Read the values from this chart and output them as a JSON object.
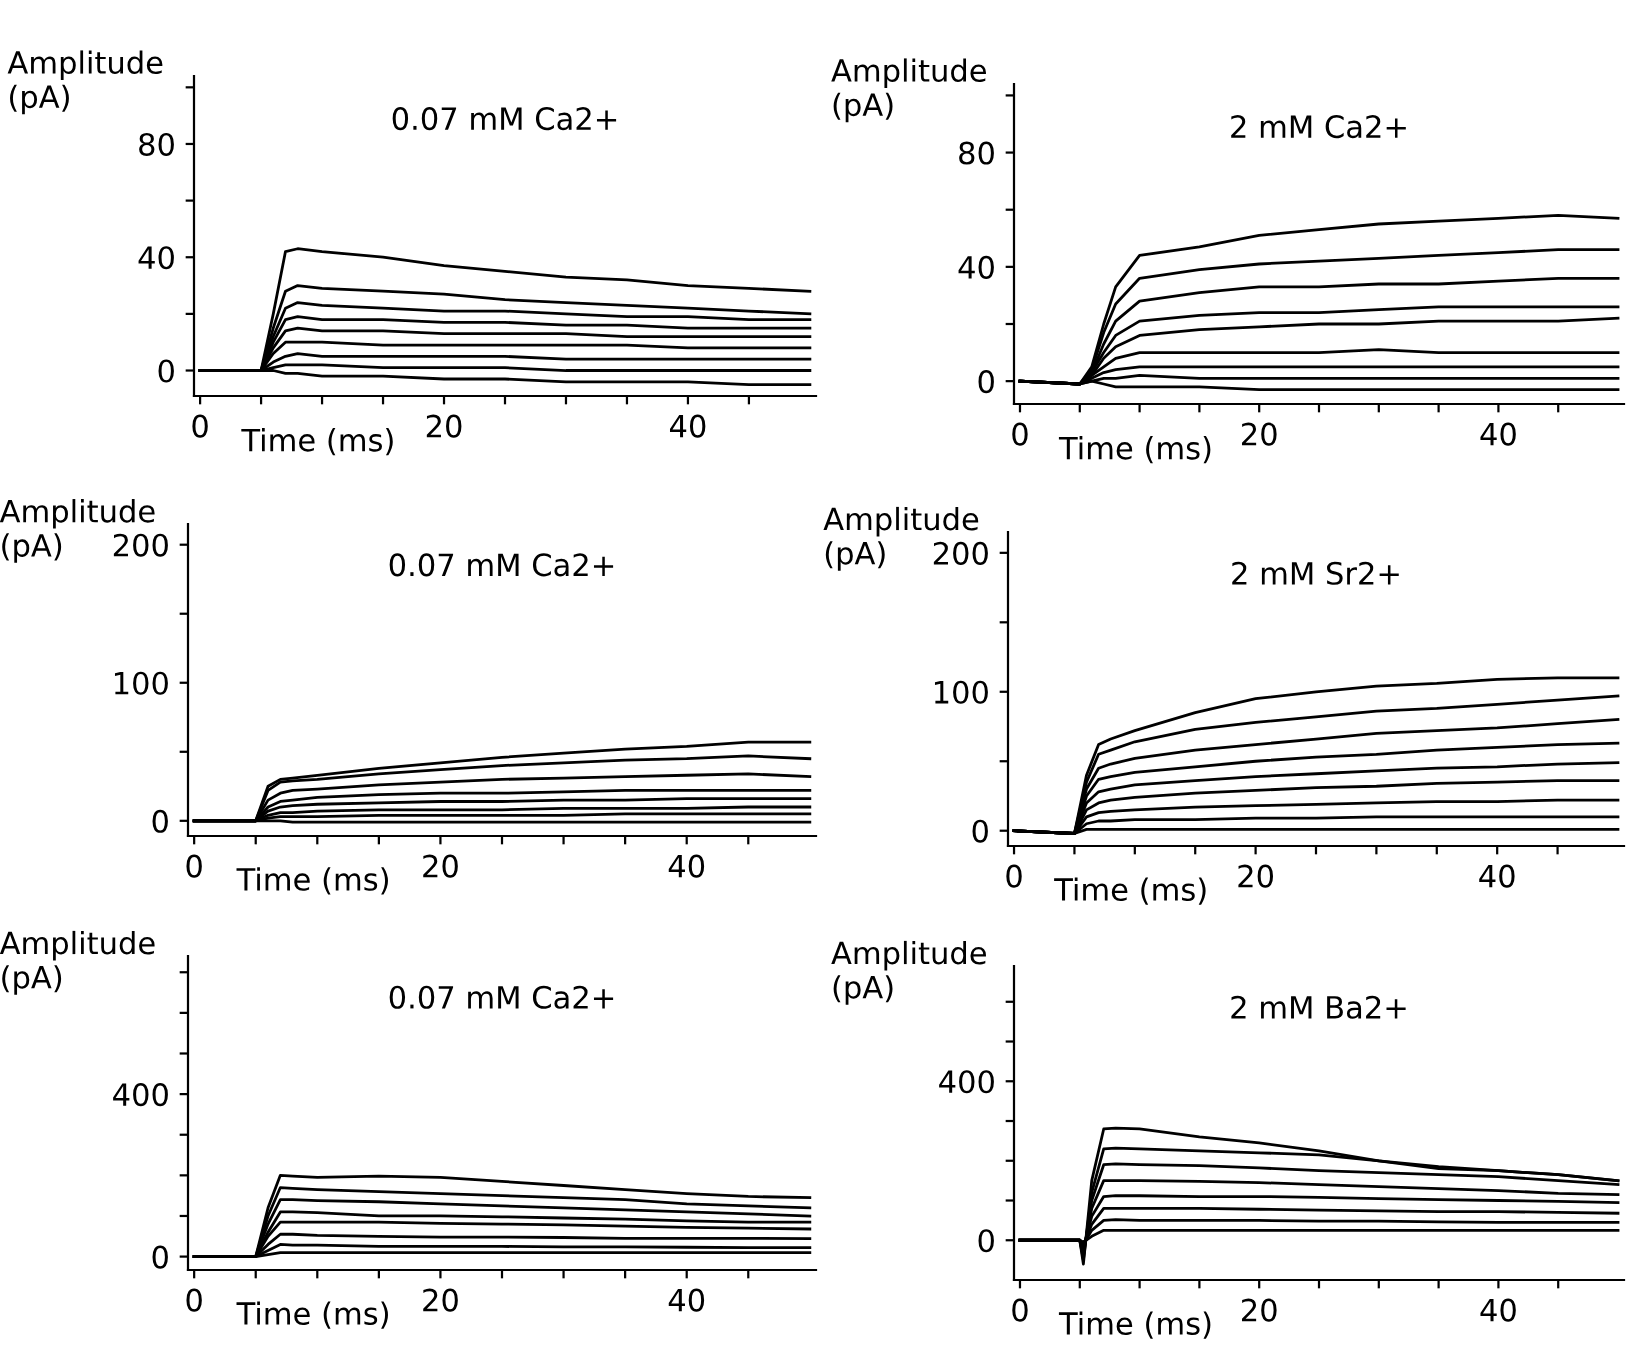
{
  "chart_data": [
    {
      "type": "line",
      "title": "0.07 mM Ca2+",
      "xlabel": "Time (ms)",
      "ylabel": "Amplitude\n(pA)",
      "xlim": [
        -0.5,
        50.5
      ],
      "ylim": [
        -9,
        104
      ],
      "xticks": [
        0,
        {
          "value": 5,
          "label": null
        },
        {
          "value": 10,
          "label": null
        },
        {
          "value": 15,
          "label": null
        },
        20,
        {
          "value": 25,
          "label": null
        },
        {
          "value": 30,
          "label": null
        },
        {
          "value": 35,
          "label": null
        },
        40,
        {
          "value": 45,
          "label": null
        }
      ],
      "yticks": [
        0,
        {
          "value": 20,
          "label": null
        },
        40,
        {
          "value": 60,
          "label": null
        },
        80,
        {
          "value": 100,
          "label": null
        }
      ],
      "x": [
        0,
        5,
        6,
        7,
        8,
        10,
        15,
        20,
        25,
        30,
        35,
        40,
        45,
        50
      ],
      "grid": false,
      "legend": false,
      "marker": "none",
      "line_style": "solid",
      "series": [
        {
          "color": "#000000",
          "values": [
            0,
            0,
            20,
            42,
            43,
            42,
            40,
            37,
            35,
            33,
            32,
            30,
            29,
            28
          ]
        },
        {
          "color": "#000000",
          "values": [
            0,
            0,
            15,
            28,
            30,
            29,
            28,
            27,
            25,
            24,
            23,
            22,
            21,
            20
          ]
        },
        {
          "color": "#000000",
          "values": [
            0,
            0,
            12,
            22,
            24,
            23,
            22,
            21,
            21,
            20,
            19,
            19,
            18,
            18
          ]
        },
        {
          "color": "#000000",
          "values": [
            0,
            0,
            10,
            18,
            19,
            18,
            18,
            17,
            17,
            16,
            16,
            15,
            15,
            15
          ]
        },
        {
          "color": "#000000",
          "values": [
            0,
            0,
            8,
            14,
            15,
            14,
            14,
            13,
            13,
            13,
            12,
            12,
            12,
            12
          ]
        },
        {
          "color": "#000000",
          "values": [
            0,
            0,
            6,
            10,
            10,
            10,
            9,
            9,
            9,
            9,
            9,
            8,
            8,
            8
          ]
        },
        {
          "color": "#000000",
          "values": [
            0,
            0,
            3,
            5,
            6,
            5,
            5,
            5,
            5,
            4,
            4,
            4,
            4,
            4
          ]
        },
        {
          "color": "#000000",
          "values": [
            0,
            0,
            1,
            2,
            2,
            2,
            1,
            1,
            1,
            0,
            0,
            0,
            0,
            0
          ]
        },
        {
          "color": "#000000",
          "values": [
            0,
            0,
            0,
            -1,
            -1,
            -2,
            -2,
            -3,
            -3,
            -4,
            -4,
            -4,
            -5,
            -5
          ]
        }
      ]
    },
    {
      "type": "line",
      "title": "2 mM Ca2+",
      "xlabel": "Time (ms)",
      "ylabel": "Amplitude\n(pA)",
      "xlim": [
        -0.5,
        50.5
      ],
      "ylim": [
        -8,
        104
      ],
      "xticks": [
        0,
        {
          "value": 5,
          "label": null
        },
        {
          "value": 10,
          "label": null
        },
        {
          "value": 15,
          "label": null
        },
        20,
        {
          "value": 25,
          "label": null
        },
        {
          "value": 30,
          "label": null
        },
        {
          "value": 35,
          "label": null
        },
        40,
        {
          "value": 45,
          "label": null
        }
      ],
      "yticks": [
        0,
        {
          "value": 20,
          "label": null
        },
        40,
        {
          "value": 60,
          "label": null
        },
        80,
        {
          "value": 100,
          "label": null
        }
      ],
      "x": [
        0,
        5,
        6,
        7,
        8,
        10,
        15,
        20,
        25,
        30,
        35,
        40,
        45,
        50
      ],
      "grid": false,
      "legend": false,
      "marker": "none",
      "line_style": "solid",
      "series": [
        {
          "color": "#000000",
          "values": [
            0,
            -1,
            5,
            20,
            33,
            44,
            47,
            51,
            53,
            55,
            56,
            57,
            58,
            57
          ]
        },
        {
          "color": "#000000",
          "values": [
            0,
            -1,
            4,
            17,
            27,
            36,
            39,
            41,
            42,
            43,
            44,
            45,
            46,
            46
          ]
        },
        {
          "color": "#000000",
          "values": [
            0,
            -1,
            3,
            13,
            21,
            28,
            31,
            33,
            33,
            34,
            34,
            35,
            36,
            36
          ]
        },
        {
          "color": "#000000",
          "values": [
            0,
            -1,
            3,
            10,
            16,
            21,
            23,
            24,
            24,
            25,
            26,
            26,
            26,
            26
          ]
        },
        {
          "color": "#000000",
          "values": [
            0,
            -1,
            2,
            8,
            12,
            16,
            18,
            19,
            20,
            20,
            21,
            21,
            21,
            22
          ]
        },
        {
          "color": "#000000",
          "values": [
            0,
            -1,
            2,
            5,
            8,
            10,
            10,
            10,
            10,
            11,
            10,
            10,
            10,
            10
          ]
        },
        {
          "color": "#000000",
          "values": [
            0,
            -1,
            1,
            3,
            4,
            5,
            5,
            5,
            5,
            5,
            5,
            5,
            5,
            5
          ]
        },
        {
          "color": "#000000",
          "values": [
            0,
            -1,
            0,
            1,
            1,
            2,
            1,
            1,
            1,
            1,
            1,
            1,
            1,
            1
          ]
        },
        {
          "color": "#000000",
          "values": [
            0,
            -1,
            0,
            -1,
            -2,
            -2,
            -2,
            -3,
            -3,
            -3,
            -3,
            -3,
            -3,
            -3
          ]
        }
      ]
    },
    {
      "type": "line",
      "title": "0.07 mM Ca2+",
      "xlabel": "Time (ms)",
      "ylabel": "Amplitude\n(pA)",
      "xlim": [
        -0.5,
        50.5
      ],
      "ylim": [
        -11,
        215
      ],
      "xticks": [
        0,
        {
          "value": 5,
          "label": null
        },
        {
          "value": 10,
          "label": null
        },
        {
          "value": 15,
          "label": null
        },
        20,
        {
          "value": 25,
          "label": null
        },
        {
          "value": 30,
          "label": null
        },
        {
          "value": 35,
          "label": null
        },
        40,
        {
          "value": 45,
          "label": null
        }
      ],
      "yticks": [
        0,
        {
          "value": 50,
          "label": null
        },
        100,
        {
          "value": 150,
          "label": null
        },
        200
      ],
      "x": [
        0,
        5,
        6,
        7,
        8,
        10,
        15,
        20,
        25,
        30,
        35,
        40,
        45,
        50
      ],
      "grid": false,
      "legend": false,
      "marker": "none",
      "line_style": "solid",
      "series": [
        {
          "color": "#000000",
          "values": [
            0,
            0,
            25,
            30,
            31,
            33,
            38,
            42,
            46,
            49,
            52,
            54,
            57,
            57
          ]
        },
        {
          "color": "#000000",
          "values": [
            0,
            0,
            22,
            28,
            29,
            30,
            34,
            37,
            40,
            42,
            44,
            45,
            47,
            45
          ]
        },
        {
          "color": "#000000",
          "values": [
            0,
            0,
            15,
            20,
            22,
            23,
            26,
            28,
            30,
            31,
            32,
            33,
            34,
            32
          ]
        },
        {
          "color": "#000000",
          "values": [
            0,
            0,
            10,
            14,
            15,
            17,
            19,
            20,
            20,
            21,
            22,
            22,
            22,
            22
          ]
        },
        {
          "color": "#000000",
          "values": [
            0,
            0,
            7,
            10,
            11,
            12,
            13,
            14,
            14,
            15,
            15,
            16,
            16,
            16
          ]
        },
        {
          "color": "#000000",
          "values": [
            0,
            0,
            4,
            6,
            6,
            7,
            8,
            8,
            8,
            9,
            9,
            9,
            10,
            10
          ]
        },
        {
          "color": "#000000",
          "values": [
            0,
            0,
            2,
            3,
            3,
            3,
            4,
            4,
            4,
            4,
            5,
            5,
            5,
            5
          ]
        },
        {
          "color": "#000000",
          "values": [
            0,
            0,
            0,
            0,
            -1,
            -1,
            -1,
            -1,
            -1,
            -1,
            -1,
            -1,
            -1,
            -1
          ]
        }
      ]
    },
    {
      "type": "line",
      "title": "2 mM Sr2+",
      "xlabel": "Time (ms)",
      "ylabel": "Amplitude\n(pA)",
      "xlim": [
        -0.5,
        50.5
      ],
      "ylim": [
        -11,
        215
      ],
      "xticks": [
        0,
        {
          "value": 5,
          "label": null
        },
        {
          "value": 10,
          "label": null
        },
        {
          "value": 15,
          "label": null
        },
        20,
        {
          "value": 25,
          "label": null
        },
        {
          "value": 30,
          "label": null
        },
        {
          "value": 35,
          "label": null
        },
        40,
        {
          "value": 45,
          "label": null
        }
      ],
      "yticks": [
        0,
        {
          "value": 50,
          "label": null
        },
        100,
        {
          "value": 150,
          "label": null
        },
        200
      ],
      "x": [
        0,
        5,
        6,
        7,
        8,
        10,
        15,
        20,
        25,
        30,
        35,
        40,
        45,
        50
      ],
      "grid": false,
      "legend": false,
      "marker": "none",
      "line_style": "solid",
      "series": [
        {
          "color": "#000000",
          "values": [
            0,
            -2,
            40,
            62,
            66,
            72,
            85,
            95,
            100,
            104,
            106,
            109,
            110,
            110
          ]
        },
        {
          "color": "#000000",
          "values": [
            0,
            -2,
            35,
            55,
            58,
            64,
            73,
            78,
            82,
            86,
            88,
            91,
            94,
            97
          ]
        },
        {
          "color": "#000000",
          "values": [
            0,
            -2,
            30,
            45,
            48,
            52,
            58,
            62,
            66,
            70,
            72,
            74,
            77,
            80
          ]
        },
        {
          "color": "#000000",
          "values": [
            0,
            -2,
            25,
            37,
            39,
            42,
            46,
            50,
            53,
            55,
            58,
            60,
            62,
            63
          ]
        },
        {
          "color": "#000000",
          "values": [
            0,
            -2,
            20,
            28,
            30,
            33,
            36,
            39,
            41,
            43,
            45,
            46,
            48,
            49
          ]
        },
        {
          "color": "#000000",
          "values": [
            0,
            -2,
            15,
            20,
            22,
            24,
            27,
            29,
            31,
            32,
            34,
            35,
            36,
            36
          ]
        },
        {
          "color": "#000000",
          "values": [
            0,
            -2,
            10,
            13,
            14,
            15,
            17,
            18,
            19,
            20,
            21,
            21,
            22,
            22
          ]
        },
        {
          "color": "#000000",
          "values": [
            0,
            -2,
            5,
            7,
            7,
            8,
            8,
            9,
            9,
            10,
            10,
            10,
            10,
            10
          ]
        },
        {
          "color": "#000000",
          "values": [
            0,
            -2,
            1,
            1,
            1,
            1,
            1,
            1,
            1,
            1,
            1,
            1,
            1,
            1
          ]
        }
      ]
    },
    {
      "type": "line",
      "title": "0.07 mM Ca2+",
      "xlabel": "Time (ms)",
      "ylabel": "Amplitude\n(pA)",
      "xlim": [
        -0.5,
        50.5
      ],
      "ylim": [
        -33,
        740
      ],
      "xticks": [
        0,
        {
          "value": 5,
          "label": null
        },
        {
          "value": 10,
          "label": null
        },
        {
          "value": 15,
          "label": null
        },
        20,
        {
          "value": 25,
          "label": null
        },
        {
          "value": 30,
          "label": null
        },
        {
          "value": 35,
          "label": null
        },
        40,
        {
          "value": 45,
          "label": null
        }
      ],
      "yticks": [
        0,
        {
          "value": 100,
          "label": null
        },
        {
          "value": 200,
          "label": null
        },
        {
          "value": 300,
          "label": null
        },
        400,
        {
          "value": 500,
          "label": null
        },
        {
          "value": 600,
          "label": null
        },
        {
          "value": 700,
          "label": null
        }
      ],
      "x": [
        0,
        5,
        6,
        7,
        8,
        10,
        15,
        20,
        25,
        30,
        35,
        40,
        45,
        50
      ],
      "grid": false,
      "legend": false,
      "marker": "none",
      "line_style": "solid",
      "series": [
        {
          "color": "#000000",
          "values": [
            0,
            0,
            120,
            200,
            198,
            195,
            198,
            195,
            185,
            175,
            165,
            155,
            148,
            145
          ]
        },
        {
          "color": "#000000",
          "values": [
            0,
            0,
            100,
            170,
            168,
            165,
            160,
            155,
            150,
            145,
            140,
            130,
            125,
            120
          ]
        },
        {
          "color": "#000000",
          "values": [
            0,
            0,
            80,
            140,
            140,
            138,
            135,
            130,
            125,
            120,
            115,
            110,
            105,
            100
          ]
        },
        {
          "color": "#000000",
          "values": [
            0,
            0,
            60,
            110,
            110,
            108,
            100,
            100,
            98,
            95,
            92,
            88,
            85,
            85
          ]
        },
        {
          "color": "#000000",
          "values": [
            0,
            0,
            50,
            85,
            85,
            85,
            85,
            82,
            80,
            78,
            75,
            72,
            70,
            68
          ]
        },
        {
          "color": "#000000",
          "values": [
            0,
            0,
            30,
            55,
            55,
            52,
            50,
            48,
            48,
            47,
            45,
            45,
            45,
            44
          ]
        },
        {
          "color": "#000000",
          "values": [
            0,
            0,
            15,
            30,
            28,
            28,
            25,
            25,
            25,
            24,
            24,
            23,
            22,
            22
          ]
        },
        {
          "color": "#000000",
          "values": [
            0,
            0,
            5,
            10,
            10,
            10,
            10,
            10,
            10,
            10,
            10,
            10,
            10,
            10
          ]
        }
      ]
    },
    {
      "type": "line",
      "title": "2 mM Ba2+",
      "xlabel": "Time (ms)",
      "ylabel": "Amplitude\n(pA)",
      "xlim": [
        -0.5,
        50.5
      ],
      "ylim": [
        -100,
        690
      ],
      "xticks": [
        0,
        {
          "value": 5,
          "label": null
        },
        {
          "value": 10,
          "label": null
        },
        {
          "value": 15,
          "label": null
        },
        20,
        {
          "value": 25,
          "label": null
        },
        {
          "value": 30,
          "label": null
        },
        {
          "value": 35,
          "label": null
        },
        40,
        {
          "value": 45,
          "label": null
        }
      ],
      "yticks": [
        0,
        {
          "value": 100,
          "label": null
        },
        {
          "value": 200,
          "label": null
        },
        {
          "value": 300,
          "label": null
        },
        400,
        {
          "value": 500,
          "label": null
        },
        {
          "value": 600,
          "label": null
        }
      ],
      "x": [
        0,
        5,
        5.3,
        6,
        7,
        8,
        10,
        15,
        20,
        25,
        30,
        35,
        40,
        45,
        50
      ],
      "grid": false,
      "legend": false,
      "marker": "none",
      "line_style": "solid",
      "series": [
        {
          "color": "#000000",
          "values": [
            0,
            0,
            -60,
            150,
            280,
            282,
            280,
            260,
            245,
            225,
            200,
            180,
            175,
            165,
            150
          ]
        },
        {
          "color": "#000000",
          "values": [
            0,
            0,
            -50,
            120,
            230,
            232,
            230,
            225,
            220,
            215,
            200,
            185,
            175,
            165,
            150
          ]
        },
        {
          "color": "#000000",
          "values": [
            0,
            0,
            -40,
            100,
            190,
            192,
            190,
            188,
            182,
            175,
            170,
            165,
            160,
            150,
            140
          ]
        },
        {
          "color": "#000000",
          "values": [
            0,
            0,
            -30,
            80,
            150,
            150,
            150,
            148,
            145,
            140,
            135,
            130,
            125,
            118,
            115
          ]
        },
        {
          "color": "#000000",
          "values": [
            0,
            0,
            -20,
            60,
            110,
            112,
            112,
            110,
            110,
            108,
            105,
            102,
            100,
            98,
            95
          ]
        },
        {
          "color": "#000000",
          "values": [
            0,
            0,
            -15,
            40,
            80,
            80,
            80,
            80,
            78,
            76,
            74,
            72,
            72,
            70,
            68
          ]
        },
        {
          "color": "#000000",
          "values": [
            0,
            0,
            -10,
            25,
            50,
            52,
            50,
            50,
            50,
            48,
            48,
            46,
            45,
            45,
            45
          ]
        },
        {
          "color": "#000000",
          "values": [
            0,
            0,
            -5,
            10,
            25,
            25,
            25,
            25,
            25,
            25,
            25,
            25,
            25,
            25,
            25
          ]
        }
      ]
    }
  ]
}
